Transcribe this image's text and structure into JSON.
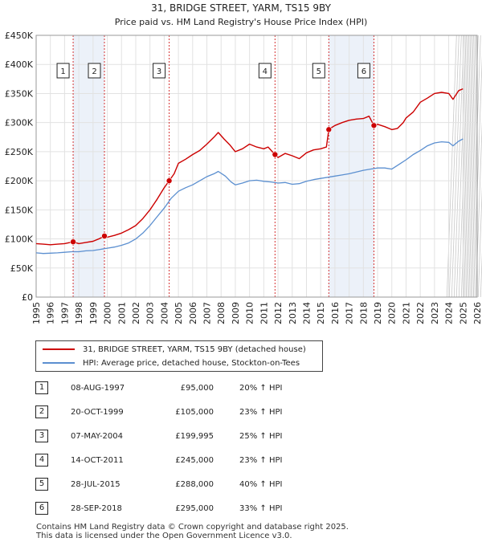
{
  "chart_data": {
    "type": "line",
    "title": "31, BRIDGE STREET, YARM, TS15 9BY",
    "subtitle": "Price paid vs. HM Land Registry's House Price Index (HPI)",
    "xlim": [
      1995,
      2026
    ],
    "ylim": [
      0,
      450000
    ],
    "x_ticks": [
      "1995",
      "1996",
      "1997",
      "1998",
      "1999",
      "2000",
      "2001",
      "2002",
      "2003",
      "2004",
      "2005",
      "2006",
      "2007",
      "2008",
      "2009",
      "2010",
      "2011",
      "2012",
      "2013",
      "2014",
      "2015",
      "2016",
      "2017",
      "2018",
      "2019",
      "2020",
      "2021",
      "2022",
      "2023",
      "2024",
      "2025",
      "2026"
    ],
    "y_ticks": [
      {
        "value": 0,
        "label": "£0"
      },
      {
        "value": 50000,
        "label": "£50K"
      },
      {
        "value": 100000,
        "label": "£100K"
      },
      {
        "value": 150000,
        "label": "£150K"
      },
      {
        "value": 200000,
        "label": "£200K"
      },
      {
        "value": 250000,
        "label": "£250K"
      },
      {
        "value": 300000,
        "label": "£300K"
      },
      {
        "value": 350000,
        "label": "£350K"
      },
      {
        "value": 400000,
        "label": "£400K"
      },
      {
        "value": 450000,
        "label": "£450K"
      }
    ],
    "forecast_start": 2025.0,
    "shaded_bands": [
      [
        1997.6,
        1999.8
      ],
      [
        2015.57,
        2018.74
      ]
    ],
    "series": [
      {
        "name": "31, BRIDGE STREET, YARM, TS15 9BY (detached house)",
        "color": "#cc0000",
        "points": [
          [
            1995,
            92000
          ],
          [
            1995.5,
            91000
          ],
          [
            1996,
            90000
          ],
          [
            1996.5,
            91000
          ],
          [
            1997,
            92000
          ],
          [
            1997.6,
            95000
          ],
          [
            1998,
            92000
          ],
          [
            1998.5,
            94000
          ],
          [
            1999,
            96000
          ],
          [
            1999.5,
            101000
          ],
          [
            1999.8,
            105000
          ],
          [
            2000,
            103000
          ],
          [
            2000.5,
            106000
          ],
          [
            2001,
            110000
          ],
          [
            2001.5,
            116000
          ],
          [
            2002,
            123000
          ],
          [
            2002.5,
            135000
          ],
          [
            2003,
            150000
          ],
          [
            2003.5,
            168000
          ],
          [
            2004,
            188000
          ],
          [
            2004.35,
            200000
          ],
          [
            2004.7,
            212000
          ],
          [
            2005,
            230000
          ],
          [
            2005.5,
            237000
          ],
          [
            2006,
            245000
          ],
          [
            2006.5,
            252000
          ],
          [
            2007,
            263000
          ],
          [
            2007.5,
            275000
          ],
          [
            2007.8,
            283000
          ],
          [
            2008.2,
            272000
          ],
          [
            2008.6,
            262000
          ],
          [
            2009,
            250000
          ],
          [
            2009.5,
            255000
          ],
          [
            2010,
            263000
          ],
          [
            2010.5,
            258000
          ],
          [
            2011,
            255000
          ],
          [
            2011.3,
            258000
          ],
          [
            2011.79,
            245000
          ],
          [
            2012,
            240000
          ],
          [
            2012.5,
            247000
          ],
          [
            2013,
            243000
          ],
          [
            2013.5,
            238000
          ],
          [
            2014,
            248000
          ],
          [
            2014.5,
            253000
          ],
          [
            2015,
            255000
          ],
          [
            2015.4,
            258000
          ],
          [
            2015.57,
            288000
          ],
          [
            2015.8,
            292000
          ],
          [
            2016,
            295000
          ],
          [
            2016.5,
            300000
          ],
          [
            2017,
            304000
          ],
          [
            2017.5,
            306000
          ],
          [
            2018,
            307000
          ],
          [
            2018.4,
            311000
          ],
          [
            2018.74,
            295000
          ],
          [
            2019,
            297000
          ],
          [
            2019.5,
            293000
          ],
          [
            2020,
            288000
          ],
          [
            2020.4,
            290000
          ],
          [
            2020.8,
            300000
          ],
          [
            2021,
            308000
          ],
          [
            2021.5,
            318000
          ],
          [
            2022,
            335000
          ],
          [
            2022.5,
            342000
          ],
          [
            2023,
            350000
          ],
          [
            2023.5,
            352000
          ],
          [
            2024,
            350000
          ],
          [
            2024.3,
            340000
          ],
          [
            2024.7,
            355000
          ],
          [
            2025,
            358000
          ]
        ]
      },
      {
        "name": "HPI: Average price, detached house, Stockton-on-Tees",
        "color": "#5b8fd0",
        "points": [
          [
            1995,
            76000
          ],
          [
            1995.5,
            75000
          ],
          [
            1996,
            75500
          ],
          [
            1996.5,
            76000
          ],
          [
            1997,
            77000
          ],
          [
            1997.5,
            78000
          ],
          [
            1998,
            78000
          ],
          [
            1998.5,
            79500
          ],
          [
            1999,
            80000
          ],
          [
            1999.5,
            82000
          ],
          [
            2000,
            84000
          ],
          [
            2000.5,
            86000
          ],
          [
            2001,
            89000
          ],
          [
            2001.5,
            93000
          ],
          [
            2002,
            100000
          ],
          [
            2002.5,
            110000
          ],
          [
            2003,
            123000
          ],
          [
            2003.5,
            138000
          ],
          [
            2004,
            153000
          ],
          [
            2004.5,
            170000
          ],
          [
            2005,
            182000
          ],
          [
            2005.5,
            188000
          ],
          [
            2006,
            193000
          ],
          [
            2006.5,
            200000
          ],
          [
            2007,
            207000
          ],
          [
            2007.5,
            212000
          ],
          [
            2007.8,
            216000
          ],
          [
            2008.3,
            208000
          ],
          [
            2008.7,
            198000
          ],
          [
            2009,
            193000
          ],
          [
            2009.5,
            196000
          ],
          [
            2010,
            200000
          ],
          [
            2010.5,
            201000
          ],
          [
            2011,
            199000
          ],
          [
            2011.5,
            198000
          ],
          [
            2012,
            196000
          ],
          [
            2012.5,
            197000
          ],
          [
            2013,
            194000
          ],
          [
            2013.5,
            195000
          ],
          [
            2014,
            199000
          ],
          [
            2014.5,
            202000
          ],
          [
            2015,
            204000
          ],
          [
            2015.5,
            206000
          ],
          [
            2016,
            208000
          ],
          [
            2016.5,
            210000
          ],
          [
            2017,
            212000
          ],
          [
            2017.5,
            215000
          ],
          [
            2018,
            218000
          ],
          [
            2018.5,
            220000
          ],
          [
            2019,
            222000
          ],
          [
            2019.5,
            222000
          ],
          [
            2020,
            220000
          ],
          [
            2020.5,
            228000
          ],
          [
            2021,
            236000
          ],
          [
            2021.5,
            245000
          ],
          [
            2022,
            252000
          ],
          [
            2022.5,
            260000
          ],
          [
            2023,
            265000
          ],
          [
            2023.5,
            267000
          ],
          [
            2024,
            266000
          ],
          [
            2024.3,
            260000
          ],
          [
            2024.7,
            268000
          ],
          [
            2025,
            272000
          ]
        ]
      }
    ],
    "sale_markers": [
      {
        "label": "1",
        "x": 1997.6,
        "value": 95000
      },
      {
        "label": "2",
        "x": 1999.8,
        "value": 105000
      },
      {
        "label": "3",
        "x": 2004.35,
        "value": 199995
      },
      {
        "label": "4",
        "x": 2011.79,
        "value": 245000
      },
      {
        "label": "5",
        "x": 2015.57,
        "value": 288000
      },
      {
        "label": "6",
        "x": 2018.74,
        "value": 295000
      }
    ]
  },
  "legend": {
    "property_label": "31, BRIDGE STREET, YARM, TS15 9BY (detached house)",
    "hpi_label": "HPI: Average price, detached house, Stockton-on-Tees",
    "property_color": "#cc0000",
    "hpi_color": "#5b8fd0"
  },
  "transactions": [
    {
      "num": "1",
      "date": "08-AUG-1997",
      "price": "£95,000",
      "hpi": "20% ↑ HPI"
    },
    {
      "num": "2",
      "date": "20-OCT-1999",
      "price": "£105,000",
      "hpi": "23% ↑ HPI"
    },
    {
      "num": "3",
      "date": "07-MAY-2004",
      "price": "£199,995",
      "hpi": "25% ↑ HPI"
    },
    {
      "num": "4",
      "date": "14-OCT-2011",
      "price": "£245,000",
      "hpi": "23% ↑ HPI"
    },
    {
      "num": "5",
      "date": "28-JUL-2015",
      "price": "£288,000",
      "hpi": "40% ↑ HPI"
    },
    {
      "num": "6",
      "date": "28-SEP-2018",
      "price": "£295,000",
      "hpi": "33% ↑ HPI"
    }
  ],
  "footer": {
    "line1": "Contains HM Land Registry data © Crown copyright and database right 2025.",
    "line2": "This data is licensed under the Open Government Licence v3.0."
  }
}
